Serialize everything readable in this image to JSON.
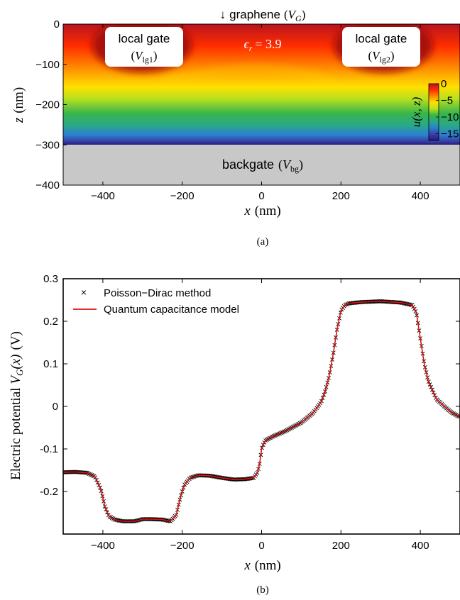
{
  "chart_data": [
    {
      "type": "heatmap",
      "panel_label": "(a)",
      "top_label": "↓ graphene (V_G)",
      "top_label_parts": {
        "arrow": "↓",
        "text": "graphene",
        "var": "V",
        "sub": "G"
      },
      "xlabel": "x (nm)",
      "xlabel_parts": {
        "var": "x",
        "unit": "(nm)"
      },
      "ylabel": "z (nm)",
      "ylabel_parts": {
        "var": "z",
        "unit": "(nm)"
      },
      "xlim": [
        -500,
        500
      ],
      "ylim": [
        -400,
        0
      ],
      "x_ticks": [
        -400,
        -200,
        0,
        200,
        400
      ],
      "x_tick_labels": [
        "−400",
        "−200",
        "0",
        "200",
        "400"
      ],
      "y_ticks": [
        0,
        -100,
        -200,
        -300,
        -400
      ],
      "y_tick_labels": [
        "0",
        "−100",
        "−200",
        "−300",
        "−400"
      ],
      "annotation_permittivity": "ϵr = 3.9",
      "permittivity_parts": {
        "sym": "ϵ",
        "sub": "r",
        "value": "= 3.9"
      },
      "local_gates": [
        {
          "line1": "local gate",
          "var": "V",
          "sub": "lg1",
          "label": "local gate (V_lg1)",
          "x_center": -300
        },
        {
          "line1": "local gate",
          "var": "V",
          "sub": "lg2",
          "label": "local gate (V_lg2)",
          "x_center": 270
        }
      ],
      "backgate": {
        "text": "backgate",
        "var": "V",
        "sub": "bg",
        "label": "backgate (V_bg)",
        "z_range": [
          -400,
          -300
        ]
      },
      "colorbar": {
        "label": "u(x, z)",
        "ticks": [
          0,
          -5,
          -10,
          -15
        ],
        "tick_labels": [
          "0",
          "−5",
          "−10",
          "−15"
        ],
        "range": [
          -17,
          0
        ],
        "colors": [
          "#b8141e",
          "#ff2d00",
          "#ff8a00",
          "#ffe000",
          "#b8e020",
          "#39b54a",
          "#2aa889",
          "#2a7fd0",
          "#3a3fa8",
          "#1f1f7a"
        ]
      },
      "colors": {
        "backgate_fill": "#c8c8c8"
      }
    },
    {
      "type": "line",
      "panel_label": "(b)",
      "xlabel": "x (nm)",
      "xlabel_parts": {
        "var": "x",
        "unit": "(nm)"
      },
      "ylabel": "Electric potential V_G(x) (V)",
      "ylabel_parts": {
        "text": "Electric potential",
        "var": "V",
        "sub": "G",
        "arg": "(x)",
        "unit": "(V)"
      },
      "xlim": [
        -500,
        500
      ],
      "ylim": [
        -0.3,
        0.3
      ],
      "x_ticks": [
        -400,
        -200,
        0,
        200,
        400
      ],
      "x_tick_labels": [
        "−400",
        "−200",
        "0",
        "200",
        "400"
      ],
      "y_ticks": [
        0.3,
        0.2,
        0.1,
        0,
        -0.1,
        -0.2
      ],
      "y_tick_labels": [
        "0.3",
        "0.2",
        "0.1",
        "0",
        "-0.1",
        "-0.2"
      ],
      "legend_position": "top-left",
      "series": [
        {
          "name": "Poisson−Dirac method",
          "marker": "x",
          "color": "#000000",
          "x": [
            -500,
            -470,
            -440,
            -420,
            -405,
            -395,
            -385,
            -370,
            -350,
            -320,
            -300,
            -280,
            -250,
            -230,
            -215,
            -205,
            -195,
            -180,
            -160,
            -130,
            -100,
            -70,
            -40,
            -20,
            -10,
            -5,
            0,
            5,
            10,
            30,
            60,
            100,
            130,
            150,
            160,
            170,
            180,
            190,
            200,
            210,
            220,
            250,
            300,
            350,
            380,
            390,
            400,
            410,
            420,
            440,
            460,
            480,
            500
          ],
          "y": [
            -0.155,
            -0.154,
            -0.156,
            -0.165,
            -0.195,
            -0.235,
            -0.258,
            -0.266,
            -0.27,
            -0.27,
            -0.265,
            -0.265,
            -0.266,
            -0.27,
            -0.255,
            -0.215,
            -0.185,
            -0.168,
            -0.162,
            -0.163,
            -0.168,
            -0.172,
            -0.171,
            -0.168,
            -0.155,
            -0.135,
            -0.1,
            -0.088,
            -0.08,
            -0.07,
            -0.058,
            -0.038,
            -0.015,
            0.01,
            0.035,
            0.07,
            0.12,
            0.18,
            0.225,
            0.238,
            0.242,
            0.245,
            0.247,
            0.244,
            0.238,
            0.22,
            0.16,
            0.1,
            0.06,
            0.018,
            0.0,
            -0.015,
            -0.025
          ]
        },
        {
          "name": "Quantum capacitance model",
          "marker": "line",
          "color": "#e01010",
          "x": [
            -500,
            -470,
            -440,
            -420,
            -405,
            -395,
            -385,
            -370,
            -350,
            -320,
            -300,
            -280,
            -250,
            -230,
            -215,
            -205,
            -195,
            -180,
            -160,
            -130,
            -100,
            -70,
            -40,
            -20,
            -10,
            -5,
            0,
            5,
            10,
            30,
            60,
            100,
            130,
            150,
            160,
            170,
            180,
            190,
            200,
            210,
            220,
            250,
            300,
            350,
            380,
            390,
            400,
            410,
            420,
            440,
            460,
            480,
            500
          ],
          "y": [
            -0.155,
            -0.154,
            -0.156,
            -0.165,
            -0.195,
            -0.235,
            -0.258,
            -0.266,
            -0.27,
            -0.27,
            -0.265,
            -0.265,
            -0.266,
            -0.27,
            -0.255,
            -0.215,
            -0.185,
            -0.168,
            -0.162,
            -0.163,
            -0.168,
            -0.172,
            -0.171,
            -0.168,
            -0.155,
            -0.135,
            -0.1,
            -0.088,
            -0.08,
            -0.07,
            -0.058,
            -0.038,
            -0.015,
            0.01,
            0.035,
            0.07,
            0.12,
            0.18,
            0.225,
            0.238,
            0.242,
            0.245,
            0.247,
            0.244,
            0.238,
            0.22,
            0.16,
            0.1,
            0.06,
            0.018,
            0.0,
            -0.015,
            -0.025
          ]
        }
      ]
    }
  ]
}
